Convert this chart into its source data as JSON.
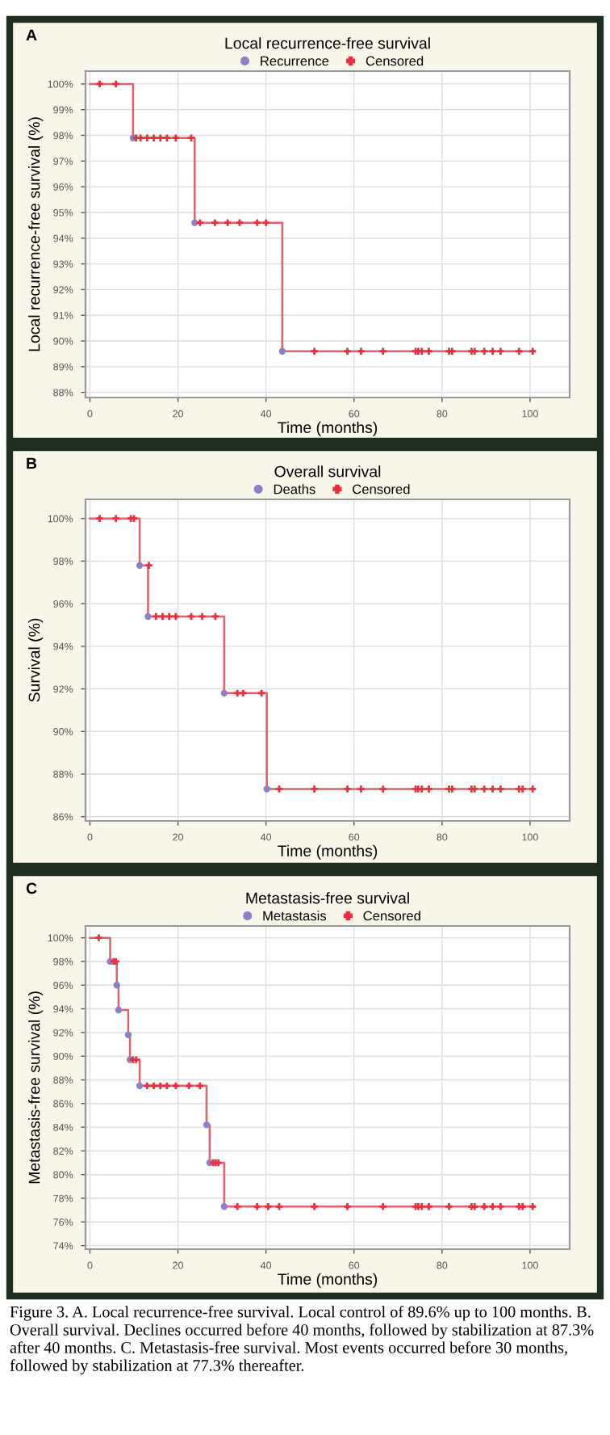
{
  "chart_data": [
    {
      "type": "step",
      "title": "Local recurrence-free survival",
      "xlabel": "Time (months)",
      "ylabel": "Local recurrence-free survival (%)",
      "annotations": [
        "A"
      ],
      "xlim": [
        -1,
        109
      ],
      "xticks": [
        0,
        20,
        40,
        60,
        80,
        100
      ],
      "ylim": [
        87.8,
        100.5
      ],
      "yticks": [
        {
          "value": 88,
          "label": "88%"
        },
        {
          "value": 89,
          "label": "89%"
        },
        {
          "value": 90,
          "label": "90%"
        },
        {
          "value": 91,
          "label": "91%"
        },
        {
          "value": 92,
          "label": "92%"
        },
        {
          "value": 93,
          "label": "93%"
        },
        {
          "value": 94,
          "label": "94%"
        },
        {
          "value": 95,
          "label": "95%"
        },
        {
          "value": 96,
          "label": "96%"
        },
        {
          "value": 97,
          "label": "97%"
        },
        {
          "value": 98,
          "label": "98%"
        },
        {
          "value": 99,
          "label": "99%"
        },
        {
          "value": 100,
          "label": "100%"
        }
      ],
      "grid": true,
      "legend": "top",
      "series": [
        {
          "color": "#e0606e",
          "marker": "none",
          "x": [
            0,
            9.8,
            23.8,
            43.7,
            101
          ],
          "values": [
            100,
            97.9,
            94.6,
            89.6,
            89.6
          ]
        },
        {
          "type": "scatter",
          "name": "Recurrence",
          "color": "#8a82c8",
          "marker": "circle",
          "x": [
            9.8,
            23.8,
            43.7
          ],
          "values": [
            97.9,
            94.6,
            89.6
          ]
        },
        {
          "type": "scatter",
          "name": "Censored",
          "color": "#e8303c",
          "marker": "cross",
          "x": [
            2.2,
            5.9,
            10.5,
            11.5,
            13,
            14.5,
            16,
            17.5,
            19.5,
            23,
            25,
            28.4,
            31.3,
            34,
            38,
            40,
            51,
            58.5,
            61.6,
            66.6,
            74,
            74.6,
            75.4,
            77,
            81.6,
            82.3,
            86.7,
            87.4,
            89.6,
            91.5,
            93.3,
            97.5,
            100.6
          ],
          "values": [
            100,
            100,
            97.9,
            97.9,
            97.9,
            97.9,
            97.9,
            97.9,
            97.9,
            97.9,
            94.6,
            94.6,
            94.6,
            94.6,
            94.6,
            94.6,
            89.6,
            89.6,
            89.6,
            89.6,
            89.6,
            89.6,
            89.6,
            89.6,
            89.6,
            89.6,
            89.6,
            89.6,
            89.6,
            89.6,
            89.6,
            89.6,
            89.6
          ]
        }
      ]
    },
    {
      "type": "step",
      "title": "Overall survival",
      "xlabel": "Time (months)",
      "ylabel": "Survival (%)",
      "annotations": [
        "B"
      ],
      "xlim": [
        -1,
        109
      ],
      "xticks": [
        0,
        20,
        40,
        60,
        80,
        100
      ],
      "ylim": [
        85.8,
        100.9
      ],
      "yticks": [
        {
          "value": 86,
          "label": "86%"
        },
        {
          "value": 88,
          "label": "88%"
        },
        {
          "value": 90,
          "label": "90%"
        },
        {
          "value": 92,
          "label": "92%"
        },
        {
          "value": 94,
          "label": "94%"
        },
        {
          "value": 96,
          "label": "96%"
        },
        {
          "value": 98,
          "label": "98%"
        },
        {
          "value": 100,
          "label": "100%"
        }
      ],
      "grid": true,
      "legend": "top",
      "series": [
        {
          "color": "#e0606e",
          "marker": "none",
          "x": [
            0,
            11.3,
            13.2,
            30.5,
            40.2,
            101
          ],
          "values": [
            100,
            97.8,
            95.4,
            91.8,
            87.3,
            87.3
          ]
        },
        {
          "type": "scatter",
          "name": "Deaths",
          "color": "#8a82c8",
          "marker": "circle",
          "x": [
            11.3,
            13.2,
            30.5,
            40.2
          ],
          "values": [
            97.8,
            95.4,
            91.8,
            87.3
          ]
        },
        {
          "type": "scatter",
          "name": "Censored",
          "color": "#e8303c",
          "marker": "cross",
          "x": [
            2.2,
            5.9,
            9.3,
            10,
            13.4,
            15,
            16.5,
            18,
            19.5,
            23,
            25.5,
            28.5,
            33.5,
            34.8,
            39,
            43,
            51,
            58.5,
            61.6,
            66.6,
            74,
            74.6,
            75.4,
            77,
            81.6,
            82.3,
            86.7,
            87.4,
            89.6,
            91.5,
            93.3,
            97.5,
            98.3,
            100.6
          ],
          "values": [
            100,
            100,
            100,
            100,
            97.8,
            95.4,
            95.4,
            95.4,
            95.4,
            95.4,
            95.4,
            95.4,
            91.8,
            91.8,
            91.8,
            87.3,
            87.3,
            87.3,
            87.3,
            87.3,
            87.3,
            87.3,
            87.3,
            87.3,
            87.3,
            87.3,
            87.3,
            87.3,
            87.3,
            87.3,
            87.3,
            87.3,
            87.3,
            87.3
          ]
        }
      ]
    },
    {
      "type": "step",
      "title": "Metastasis-free survival",
      "xlabel": "Time (months)",
      "ylabel": "Metastasis-free survival (%)",
      "annotations": [
        "C",
        "Figure 3. A. Local recurrence-free survival. Local control of 89.6% up to 100 months. B. Overall survival. Declines occurred before 40 months, followed by stabilization at 87.3% after 40 months. C. Metastasis-free survival. Most events occurred before 30 months, followed by stabilization at 77.3% thereafter."
      ],
      "xlim": [
        -1,
        109
      ],
      "xticks": [
        0,
        20,
        40,
        60,
        80,
        100
      ],
      "ylim": [
        73.7,
        101
      ],
      "yticks": [
        {
          "value": 74,
          "label": "74%"
        },
        {
          "value": 76,
          "label": "76%"
        },
        {
          "value": 78,
          "label": "78%"
        },
        {
          "value": 80,
          "label": "80%"
        },
        {
          "value": 82,
          "label": "82%"
        },
        {
          "value": 84,
          "label": "84%"
        },
        {
          "value": 86,
          "label": "86%"
        },
        {
          "value": 88,
          "label": "88%"
        },
        {
          "value": 90,
          "label": "90%"
        },
        {
          "value": 92,
          "label": "92%"
        },
        {
          "value": 94,
          "label": "94%"
        },
        {
          "value": 96,
          "label": "96%"
        },
        {
          "value": 98,
          "label": "98%"
        },
        {
          "value": 100,
          "label": "100%"
        }
      ],
      "grid": true,
      "legend": "top",
      "series": [
        {
          "color": "#e0606e",
          "marker": "none",
          "x": [
            0,
            4.6,
            6.1,
            6.5,
            8.7,
            9.1,
            11.3,
            26.5,
            27.2,
            30.5,
            101
          ],
          "values": [
            100,
            98,
            96,
            93.9,
            91.8,
            89.7,
            87.5,
            84.2,
            81,
            77.3,
            77.3
          ]
        },
        {
          "type": "scatter",
          "name": "Metastasis",
          "color": "#8a82c8",
          "marker": "circle",
          "x": [
            4.6,
            6.1,
            6.5,
            8.7,
            9.1,
            11.3,
            26.5,
            27.2,
            30.5
          ],
          "values": [
            98,
            96,
            93.9,
            91.8,
            89.7,
            87.5,
            84.2,
            81,
            77.3
          ]
        },
        {
          "type": "scatter",
          "name": "Censored",
          "color": "#e8303c",
          "marker": "cross",
          "x": [
            2,
            5.4,
            5.9,
            9.8,
            10.5,
            13,
            14.5,
            16,
            17.5,
            19.5,
            22.5,
            25,
            28,
            28.6,
            29.2,
            33.5,
            38,
            40.5,
            43,
            51,
            58.5,
            66.6,
            74,
            74.6,
            75.4,
            77,
            81.6,
            86.7,
            87.4,
            89.6,
            91.5,
            93.3,
            97.5,
            98.3,
            100.6
          ],
          "values": [
            100,
            98,
            98,
            89.7,
            89.7,
            87.5,
            87.5,
            87.5,
            87.5,
            87.5,
            87.5,
            87.5,
            81,
            81,
            81,
            77.3,
            77.3,
            77.3,
            77.3,
            77.3,
            77.3,
            77.3,
            77.3,
            77.3,
            77.3,
            77.3,
            77.3,
            77.3,
            77.3,
            77.3,
            77.3,
            77.3,
            77.3,
            77.3,
            77.3
          ]
        }
      ]
    }
  ]
}
